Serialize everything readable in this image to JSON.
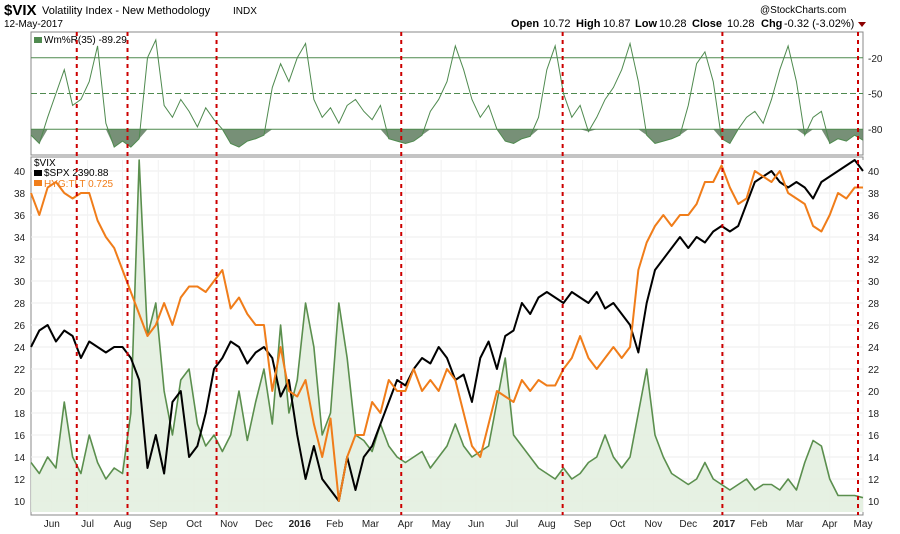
{
  "header": {
    "symbol": "$VIX",
    "name": "Volatility Index - New Methodology",
    "exchange": "INDX",
    "date": "12-May-2017",
    "open_label": "Open",
    "open": "10.72",
    "high_label": "High",
    "high": "10.87",
    "low_label": "Low",
    "low": "10.28",
    "close_label": "Close",
    "close": "10.28",
    "chg_label": "Chg",
    "chg": "-0.32 (-3.02%)",
    "watermark": "@StockCharts.com",
    "down_color": "#8b0000"
  },
  "chart_data": [
    {
      "type": "line",
      "panel": "indicator",
      "legend_text": "Wm%R(35) -89.29",
      "ylim": [
        -100,
        0
      ],
      "yticks": [
        -20,
        -50,
        -80
      ],
      "reference_lines": [
        -20,
        -50,
        -80
      ],
      "shade_below": -80,
      "color": "#4f8a4f",
      "x_index_range": [
        0,
        100
      ],
      "series": [
        {
          "name": "Wm%R(35)",
          "x": [
            0,
            1,
            2,
            3,
            4,
            5,
            6,
            7,
            8,
            9,
            10,
            11,
            12,
            13,
            14,
            15,
            16,
            17,
            18,
            19,
            20,
            21,
            22,
            23,
            24,
            25,
            26,
            27,
            28,
            29,
            30,
            31,
            32,
            33,
            34,
            35,
            36,
            37,
            38,
            39,
            40,
            41,
            42,
            43,
            44,
            45,
            46,
            47,
            48,
            49,
            50,
            51,
            52,
            53,
            54,
            55,
            56,
            57,
            58,
            59,
            60,
            61,
            62,
            63,
            64,
            65,
            66,
            67,
            68,
            69,
            70,
            71,
            72,
            73,
            74,
            75,
            76,
            77,
            78,
            79,
            80,
            81,
            82,
            83,
            84,
            85,
            86,
            87,
            88,
            89,
            90,
            91,
            92,
            93,
            94,
            95,
            96,
            97,
            98,
            99,
            100
          ],
          "values": [
            -85,
            -92,
            -70,
            -50,
            -30,
            -60,
            -55,
            -40,
            -10,
            -75,
            -95,
            -90,
            -95,
            -88,
            -20,
            -5,
            -60,
            -70,
            -55,
            -65,
            -78,
            -62,
            -72,
            -80,
            -92,
            -95,
            -90,
            -88,
            -85,
            -45,
            -25,
            -40,
            -20,
            -8,
            -55,
            -70,
            -62,
            -75,
            -60,
            -55,
            -65,
            -72,
            -60,
            -88,
            -90,
            -92,
            -90,
            -85,
            -65,
            -55,
            -40,
            -10,
            -30,
            -55,
            -70,
            -60,
            -80,
            -90,
            -92,
            -88,
            -86,
            -70,
            -30,
            -10,
            -50,
            -70,
            -60,
            -82,
            -70,
            -55,
            -45,
            -30,
            -8,
            -40,
            -85,
            -92,
            -90,
            -88,
            -85,
            -60,
            -25,
            -15,
            -40,
            -88,
            -92,
            -80,
            -70,
            -65,
            -75,
            -55,
            -30,
            -10,
            -40,
            -85,
            -70,
            -65,
            -92,
            -88,
            -90,
            -85,
            -89.29
          ]
        }
      ]
    },
    {
      "type": "line",
      "panel": "main",
      "ylim": [
        9,
        41
      ],
      "yticks": [
        10,
        12,
        14,
        16,
        18,
        20,
        22,
        24,
        26,
        28,
        30,
        32,
        34,
        36,
        38,
        40
      ],
      "x_tick_labels": [
        "Jun",
        "Jul",
        "Aug",
        "Sep",
        "Oct",
        "Nov",
        "Dec",
        "2016",
        "Feb",
        "Mar",
        "Apr",
        "May",
        "Jun",
        "Jul",
        "Aug",
        "Sep",
        "Oct",
        "Nov",
        "Dec",
        "2017",
        "Feb",
        "Mar",
        "Apr",
        "May"
      ],
      "x_tick_positions": [
        2.5,
        6.8,
        11,
        15.3,
        19.6,
        23.8,
        28,
        32.3,
        36.5,
        40.8,
        45,
        49.3,
        53.5,
        57.8,
        62,
        66.3,
        70.5,
        74.8,
        79,
        83.3,
        87.5,
        91.8,
        96,
        100
      ],
      "bold_tick_labels": [
        "2016",
        "2017"
      ],
      "vertical_markers": [
        5.5,
        11.6,
        22.3,
        44.5,
        63.9,
        83.1,
        99.4
      ],
      "marker_color": "#cc0000",
      "series": [
        {
          "name": "$VIX",
          "color": "#5b8f4e",
          "area": true,
          "x": [
            0,
            1,
            2,
            3,
            4,
            5,
            6,
            7,
            8,
            9,
            10,
            11,
            12,
            13,
            14,
            15,
            16,
            17,
            18,
            19,
            20,
            21,
            22,
            23,
            24,
            25,
            26,
            27,
            28,
            29,
            30,
            31,
            32,
            33,
            34,
            35,
            36,
            37,
            38,
            39,
            40,
            41,
            42,
            43,
            44,
            45,
            46,
            47,
            48,
            49,
            50,
            51,
            52,
            53,
            54,
            55,
            56,
            57,
            58,
            59,
            60,
            61,
            62,
            63,
            64,
            65,
            66,
            67,
            68,
            69,
            70,
            71,
            72,
            73,
            74,
            75,
            76,
            77,
            78,
            79,
            80,
            81,
            82,
            83,
            84,
            85,
            86,
            87,
            88,
            89,
            90,
            91,
            92,
            93,
            94,
            95,
            96,
            97,
            98,
            99,
            100
          ],
          "values": [
            13.5,
            12.5,
            14,
            13,
            19,
            14,
            12.5,
            16,
            13.5,
            12,
            13,
            12.5,
            18,
            41,
            25,
            28,
            20,
            16,
            21,
            22,
            17,
            15,
            16,
            14.5,
            16,
            20,
            15.5,
            19,
            22,
            17,
            26,
            18,
            21,
            28,
            24,
            16,
            18,
            28,
            23,
            16,
            15.5,
            14.5,
            17,
            15,
            14,
            13.5,
            14,
            14.5,
            13,
            14,
            15,
            17,
            15,
            14,
            14.5,
            15,
            19,
            23,
            16,
            15,
            14,
            13,
            12.5,
            12,
            13,
            12,
            12.5,
            13.5,
            14,
            16,
            14,
            13,
            14,
            18,
            22,
            16,
            14,
            12.5,
            12,
            11.5,
            12,
            13.5,
            12,
            11.5,
            11,
            11.5,
            12,
            11,
            11.5,
            11.5,
            11,
            12,
            11,
            13.5,
            15.5,
            15,
            12,
            10.5,
            10.5,
            10.5,
            10.3
          ]
        },
        {
          "name": "$SPX 2390.88",
          "color": "#000000",
          "x": [
            0,
            1,
            2,
            3,
            4,
            5,
            6,
            7,
            8,
            9,
            10,
            11,
            12,
            13,
            14,
            15,
            16,
            17,
            18,
            19,
            20,
            21,
            22,
            23,
            24,
            25,
            26,
            27,
            28,
            29,
            30,
            31,
            32,
            33,
            34,
            35,
            36,
            37,
            38,
            39,
            40,
            41,
            42,
            43,
            44,
            45,
            46,
            47,
            48,
            49,
            50,
            51,
            52,
            53,
            54,
            55,
            56,
            57,
            58,
            59,
            60,
            61,
            62,
            63,
            64,
            65,
            66,
            67,
            68,
            69,
            70,
            71,
            72,
            73,
            74,
            75,
            76,
            77,
            78,
            79,
            80,
            81,
            82,
            83,
            84,
            85,
            86,
            87,
            88,
            89,
            90,
            91,
            92,
            93,
            94,
            95,
            96,
            97,
            98,
            99,
            100
          ],
          "values": [
            24,
            25.5,
            26,
            24.5,
            25.5,
            25,
            23,
            24.5,
            24,
            23.5,
            24,
            24,
            23,
            21,
            13,
            16,
            12.5,
            19,
            20,
            14,
            15,
            18,
            22,
            23,
            24.5,
            24,
            22.5,
            23.5,
            24,
            23,
            19.5,
            21,
            16,
            12,
            15,
            12,
            11,
            10,
            14,
            11,
            14,
            15,
            17,
            19,
            21,
            20.5,
            22,
            23,
            22.5,
            24,
            23,
            21,
            21.5,
            19,
            23,
            24.5,
            22,
            25,
            25.5,
            28,
            27,
            28.5,
            29,
            28.5,
            28,
            29,
            28.5,
            28,
            29,
            27.5,
            28,
            27,
            26,
            23.5,
            28,
            31,
            32,
            33,
            34,
            33,
            34,
            33.5,
            34.5,
            35,
            34.5,
            35,
            37,
            39,
            39.5,
            40,
            39,
            38.5,
            39,
            38.5,
            37.5,
            39,
            39.5,
            40,
            40.5,
            41,
            40
          ]
        },
        {
          "name": "HYG:TLT 0.725",
          "color": "#f07d1a",
          "x": [
            0,
            1,
            2,
            3,
            4,
            5,
            6,
            7,
            8,
            9,
            10,
            11,
            12,
            13,
            14,
            15,
            16,
            17,
            18,
            19,
            20,
            21,
            22,
            23,
            24,
            25,
            26,
            27,
            28,
            29,
            30,
            31,
            32,
            33,
            34,
            35,
            36,
            37,
            38,
            39,
            40,
            41,
            42,
            43,
            44,
            45,
            46,
            47,
            48,
            49,
            50,
            51,
            52,
            53,
            54,
            55,
            56,
            57,
            58,
            59,
            60,
            61,
            62,
            63,
            64,
            65,
            66,
            67,
            68,
            69,
            70,
            71,
            72,
            73,
            74,
            75,
            76,
            77,
            78,
            79,
            80,
            81,
            82,
            83,
            84,
            85,
            86,
            87,
            88,
            89,
            90,
            91,
            92,
            93,
            94,
            95,
            96,
            97,
            98,
            99,
            100
          ],
          "values": [
            38,
            36,
            38.5,
            39,
            38,
            37.5,
            38,
            38,
            35.5,
            34,
            33,
            31,
            29,
            27,
            25,
            26,
            28,
            26,
            28.5,
            29.5,
            29.5,
            29,
            30,
            31,
            27.5,
            28.5,
            27,
            26,
            26,
            20,
            24,
            20,
            19.5,
            21,
            17,
            14,
            17.5,
            10,
            14,
            16,
            16,
            19,
            18,
            21,
            20,
            20,
            22,
            20,
            21,
            20,
            22,
            21,
            18,
            15,
            14,
            17,
            20,
            19.5,
            19,
            21,
            20,
            21,
            20.5,
            20.5,
            22,
            23,
            25,
            23,
            22,
            23,
            24,
            23,
            24,
            31,
            33.5,
            35,
            36,
            35,
            36,
            36,
            37,
            39,
            39,
            40.5,
            38.5,
            37,
            37.5,
            40,
            39.5,
            39,
            40,
            38,
            37.5,
            37,
            35,
            34.5,
            36,
            38,
            37.5,
            38.5,
            38.5
          ]
        }
      ]
    }
  ]
}
